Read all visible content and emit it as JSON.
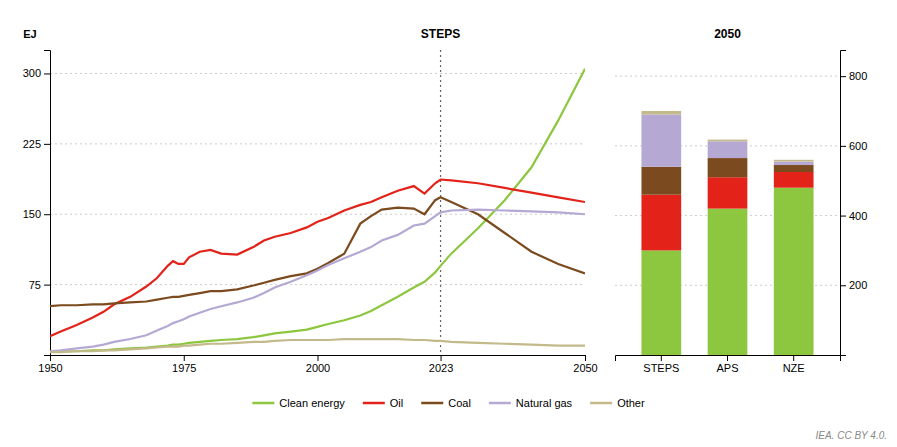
{
  "chart_data": [
    {
      "type": "line",
      "y_label": "EJ",
      "x": [
        1950,
        1952,
        1955,
        1958,
        1960,
        1962,
        1965,
        1968,
        1970,
        1972,
        1973,
        1974,
        1975,
        1976,
        1978,
        1980,
        1982,
        1985,
        1988,
        1990,
        1992,
        1995,
        1998,
        2000,
        2002,
        2005,
        2008,
        2010,
        2012,
        2015,
        2018,
        2020,
        2022,
        2023,
        2025,
        2030,
        2035,
        2040,
        2045,
        2050
      ],
      "series": [
        {
          "name": "Clean energy",
          "color": "#8dc63f",
          "values": [
            3,
            4,
            4,
            5,
            5,
            6,
            7,
            8,
            9,
            10,
            11,
            11,
            12,
            13,
            14,
            15,
            16,
            17,
            19,
            21,
            23,
            25,
            27,
            30,
            33,
            37,
            42,
            47,
            53,
            62,
            72,
            78,
            88,
            95,
            108,
            135,
            165,
            200,
            250,
            305
          ]
        },
        {
          "name": "Oil",
          "color": "#e32219",
          "values": [
            20,
            25,
            32,
            40,
            46,
            54,
            62,
            73,
            82,
            95,
            100,
            97,
            97,
            104,
            110,
            112,
            108,
            107,
            115,
            122,
            126,
            130,
            136,
            142,
            146,
            154,
            160,
            163,
            168,
            175,
            180,
            172,
            183,
            187,
            186,
            183,
            178,
            173,
            168,
            163
          ]
        },
        {
          "name": "Coal",
          "color": "#7b4a1e",
          "values": [
            52,
            53,
            53,
            54,
            54,
            55,
            56,
            57,
            59,
            61,
            62,
            62,
            63,
            64,
            66,
            68,
            68,
            70,
            74,
            77,
            80,
            84,
            87,
            92,
            98,
            108,
            140,
            148,
            155,
            157,
            156,
            150,
            165,
            168,
            163,
            150,
            130,
            110,
            97,
            87
          ]
        },
        {
          "name": "Natural gas",
          "color": "#b5a9d4",
          "values": [
            4,
            5,
            7,
            9,
            11,
            14,
            17,
            21,
            26,
            31,
            34,
            36,
            38,
            41,
            45,
            49,
            52,
            56,
            61,
            66,
            72,
            78,
            85,
            90,
            96,
            103,
            110,
            115,
            122,
            128,
            138,
            140,
            148,
            152,
            154,
            155,
            154,
            153,
            152,
            150
          ]
        },
        {
          "name": "Other",
          "color": "#c4b98a",
          "values": [
            3,
            3,
            4,
            4,
            5,
            5,
            6,
            7,
            8,
            9,
            9,
            9,
            10,
            10,
            11,
            12,
            12,
            13,
            14,
            14,
            15,
            16,
            16,
            16,
            16,
            17,
            17,
            17,
            17,
            17,
            16,
            16,
            15,
            15,
            14,
            13,
            12,
            11,
            10,
            10
          ]
        }
      ],
      "xlim": [
        1950,
        2050
      ],
      "xticks": [
        1950,
        1975,
        2000,
        2023,
        2050
      ],
      "ylim": [
        0,
        325
      ],
      "yticks": [
        75,
        150,
        225,
        300
      ],
      "grid": true,
      "legend": "bottom",
      "annotations": [
        {
          "x": 2023,
          "text": "STEPS"
        },
        {
          "text": "IEA. CC BY 4.0."
        }
      ]
    },
    {
      "type": "bar",
      "title": "2050",
      "stacked": true,
      "categories": [
        "STEPS",
        "APS",
        "NZE"
      ],
      "series": [
        {
          "color": "#8dc63f",
          "values": [
            300,
            420,
            480
          ]
        },
        {
          "color": "#e32219",
          "values": [
            160,
            90,
            45
          ]
        },
        {
          "color": "#7b4a1e",
          "values": [
            80,
            55,
            20
          ]
        },
        {
          "color": "#b5a9d4",
          "values": [
            150,
            48,
            10
          ]
        },
        {
          "color": "#c4b98a",
          "values": [
            10,
            5,
            5
          ]
        }
      ],
      "ylim": [
        0,
        875
      ],
      "yticks": [
        200,
        400,
        600,
        800
      ],
      "grid": true
    }
  ]
}
